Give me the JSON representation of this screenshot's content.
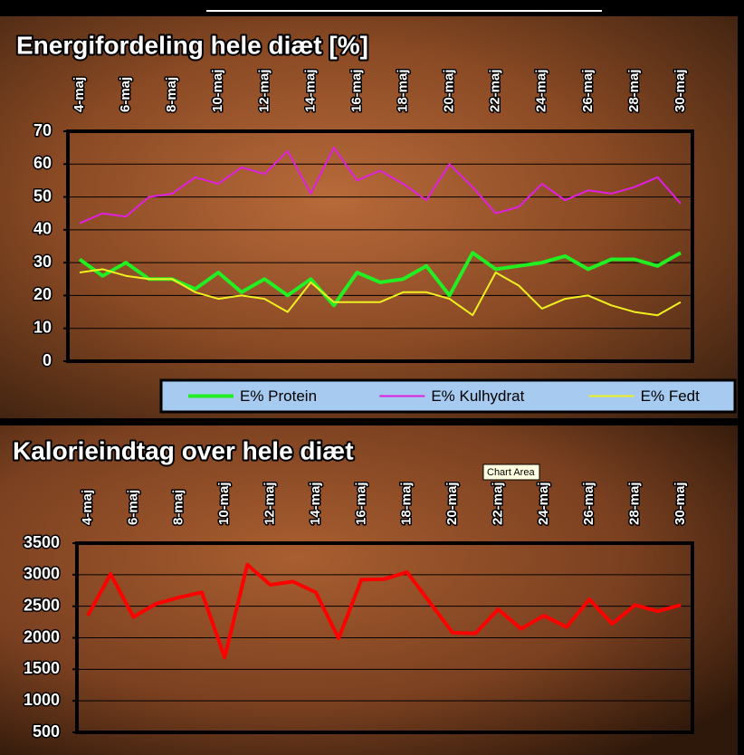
{
  "chart_data": [
    {
      "type": "line",
      "title": "Energifordeling hele diæt [%]",
      "categories": [
        "4-maj",
        null,
        "6-maj",
        null,
        "8-maj",
        null,
        "10-maj",
        null,
        "12-maj",
        null,
        "14-maj",
        null,
        "16-maj",
        null,
        "18-maj",
        null,
        "20-maj",
        null,
        "22-maj",
        null,
        "24-maj",
        null,
        "26-maj",
        null,
        "28-maj",
        null,
        "30-maj"
      ],
      "series": [
        {
          "name": "E% Protein",
          "color": "#22ee22",
          "values": [
            31,
            26,
            30,
            25,
            25,
            22,
            27,
            21,
            25,
            20,
            25,
            17,
            27,
            24,
            25,
            29,
            20,
            33,
            28,
            29,
            30,
            32,
            28,
            31,
            31,
            29,
            33
          ]
        },
        {
          "name": "E% Kulhydrat",
          "color": "#e020e0",
          "values": [
            42,
            45,
            44,
            50,
            51,
            56,
            54,
            59,
            57,
            64,
            51,
            65,
            55,
            58,
            54,
            49,
            60,
            53,
            45,
            47,
            54,
            49,
            52,
            51,
            53,
            56,
            48
          ]
        },
        {
          "name": "E% Fedt",
          "color": "#f0f020",
          "values": [
            27,
            28,
            26,
            25,
            25,
            21,
            19,
            20,
            19,
            15,
            24,
            18,
            18,
            18,
            21,
            21,
            19,
            14,
            27,
            23,
            16,
            19,
            20,
            17,
            15,
            14,
            18
          ]
        }
      ],
      "ylim": [
        0,
        70
      ],
      "yticks": [
        0,
        10,
        20,
        30,
        40,
        50,
        60,
        70
      ],
      "grid": true,
      "legend": "bottom"
    },
    {
      "type": "line",
      "title": "Kalorieindtag over hele diæt",
      "categories": [
        "4-maj",
        null,
        "6-maj",
        null,
        "8-maj",
        null,
        "10-maj",
        null,
        "12-maj",
        null,
        "14-maj",
        null,
        "16-maj",
        null,
        "18-maj",
        null,
        "20-maj",
        null,
        "22-maj",
        null,
        "24-maj",
        null,
        "26-maj",
        null,
        "28-maj",
        null,
        "30-maj"
      ],
      "values": [
        2350,
        3010,
        2330,
        2540,
        2640,
        2720,
        1690,
        3160,
        2840,
        2890,
        2720,
        1990,
        2920,
        2930,
        3040,
        2560,
        2080,
        2070,
        2450,
        2140,
        2350,
        2170,
        2610,
        2220,
        2520,
        2420,
        2520
      ],
      "color": "#ff0000",
      "ylim": [
        500,
        3500
      ],
      "yticks": [
        500,
        1000,
        1500,
        2000,
        2500,
        3000,
        3500
      ],
      "grid": true
    }
  ],
  "tooltip": "Chart Area"
}
